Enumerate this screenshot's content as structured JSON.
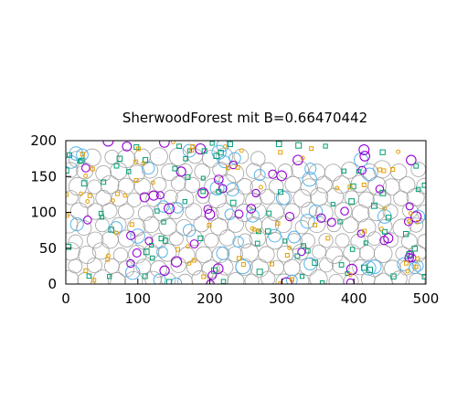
{
  "chart_data": {
    "type": "scatter",
    "title": "SherwoodForest mit B=0.66470442",
    "xlabel": "",
    "ylabel": "",
    "xlim": [
      0,
      500
    ],
    "ylim": [
      0,
      200
    ],
    "x_ticks": [
      0,
      100,
      200,
      300,
      400,
      500
    ],
    "y_ticks": [
      0,
      50,
      100,
      150,
      200
    ],
    "grid": false,
    "legend": "none",
    "colors": {
      "large_circle": "#a0a0a0",
      "medium_circle": "#56b4e9",
      "purple_circle": "#9400d3",
      "teal_square": "#009e73",
      "orange_circle": "#e69f00"
    },
    "marker_density": {
      "large_circles": 210,
      "medium_circles": 45,
      "purple_circles": 55,
      "teal_squares": 85,
      "orange_small": 70
    },
    "marker_radii_data_units": {
      "large_circle": 11,
      "medium_circle": 9,
      "purple_circle": 6
    }
  }
}
